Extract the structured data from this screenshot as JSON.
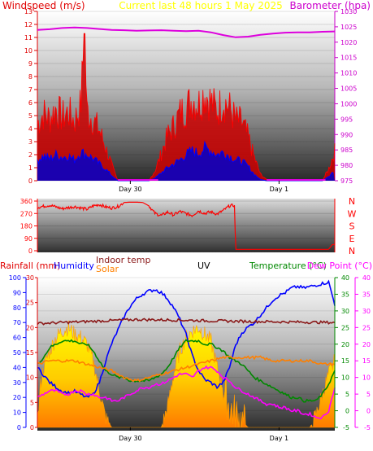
{
  "colors": {
    "wind_label": "#e00000",
    "baro_label": "#cc00cc",
    "header_title": "#ffff00",
    "wind": "#ff0000",
    "gust_fill": "#cc0000",
    "wind_avg": "#0000ff",
    "barometer": "#dd00dd",
    "direction": "#ff0000",
    "rain_label": "#e00000",
    "humidity": "#0000ff",
    "indoor_temp": "#8b1a1a",
    "solar": "#ff8000",
    "uv": "#000000",
    "temperature": "#008800",
    "dew_point": "#ff00ff"
  },
  "header": {
    "windspeed_label": "Windspeed (m/s)",
    "title": "Current last 48 hours 1 May 2025",
    "barometer_label": "Barometer (hpa)"
  },
  "bottom_header": {
    "rainfall": "Rainfall (mm)",
    "humidity": "Humidity",
    "indoor_temp": "Indoor temp",
    "solar": "Solar",
    "uv": "UV",
    "temperature": "Temperature (°C)",
    "dew_point": "Dew Point (°C)"
  },
  "chart_data": [
    {
      "type": "line",
      "title": "Current last 48 hours 1 May 2025",
      "x_range_hours": [
        0,
        48
      ],
      "xtick_labels": [
        "Day 30",
        "Day 1"
      ],
      "xtick_hours": [
        15,
        39
      ],
      "y_left": {
        "label": "Windspeed (m/s)",
        "range": [
          0,
          13
        ],
        "ticks": [
          0,
          1,
          2,
          3,
          4,
          5,
          6,
          7,
          8,
          9,
          10,
          11,
          12,
          13
        ]
      },
      "y_right": {
        "label": "Barometer (hpa)",
        "range": [
          975,
          1030
        ],
        "ticks": [
          975,
          980,
          985,
          990,
          995,
          1000,
          1005,
          1010,
          1015,
          1020,
          1025,
          1030
        ]
      },
      "series": [
        {
          "name": "Gust",
          "axis": "left",
          "x": [
            0,
            1,
            2,
            3,
            4,
            5,
            6,
            7,
            7.6,
            8,
            9,
            10,
            11,
            12,
            13,
            14,
            15,
            16,
            17,
            18,
            19,
            20,
            21,
            22,
            23,
            24,
            25,
            26,
            27,
            28,
            29,
            30,
            31,
            32,
            33,
            34,
            35,
            36,
            37,
            38,
            39,
            40,
            41,
            42,
            43,
            44,
            45,
            46,
            47,
            48
          ],
          "values": [
            4.4,
            5.2,
            4.8,
            5.6,
            4.9,
            5.3,
            4.6,
            5.8,
            11.3,
            5.4,
            4.7,
            3.9,
            2.6,
            1.2,
            0,
            0,
            0,
            0,
            0,
            0,
            0.8,
            2.1,
            3.5,
            4.2,
            5.2,
            5.6,
            6.3,
            5.9,
            6.8,
            6.1,
            5.4,
            6.2,
            5.6,
            4.7,
            4.5,
            3.4,
            1.8,
            0.5,
            0.1,
            0,
            0,
            0,
            0,
            0,
            0,
            0,
            0,
            0,
            0.9,
            2.3
          ]
        },
        {
          "name": "Average",
          "axis": "left",
          "x": [
            0,
            1,
            2,
            3,
            4,
            5,
            6,
            7,
            8,
            9,
            10,
            11,
            12,
            13,
            14,
            15,
            16,
            17,
            18,
            19,
            20,
            21,
            22,
            23,
            24,
            25,
            26,
            27,
            28,
            29,
            30,
            31,
            32,
            33,
            34,
            35,
            36,
            37,
            38,
            39,
            40,
            41,
            42,
            43,
            44,
            45,
            46,
            47,
            48
          ],
          "values": [
            1.6,
            1.9,
            1.7,
            2.0,
            1.8,
            1.9,
            1.6,
            2.2,
            2.0,
            1.7,
            1.3,
            0.9,
            0.4,
            0,
            0,
            0,
            0,
            0,
            0,
            0.2,
            0.6,
            1.0,
            1.3,
            1.6,
            2.0,
            2.3,
            2.1,
            2.5,
            2.3,
            2.0,
            2.2,
            1.9,
            1.6,
            1.5,
            1.1,
            0.5,
            0.1,
            0,
            0,
            0,
            0,
            0,
            0,
            0,
            0,
            0,
            0,
            0.3,
            0.8
          ]
        },
        {
          "name": "Barometer",
          "axis": "right",
          "x": [
            0,
            2,
            4,
            6,
            8,
            10,
            12,
            14,
            16,
            18,
            20,
            22,
            24,
            26,
            28,
            30,
            32,
            34,
            36,
            38,
            40,
            42,
            44,
            46,
            48
          ],
          "values": [
            1024.0,
            1024.2,
            1024.6,
            1024.8,
            1024.6,
            1024.3,
            1024.0,
            1023.9,
            1023.7,
            1023.8,
            1023.9,
            1023.7,
            1023.6,
            1023.7,
            1023.2,
            1022.3,
            1021.6,
            1021.8,
            1022.4,
            1022.8,
            1023.1,
            1023.2,
            1023.2,
            1023.4,
            1023.5
          ]
        }
      ]
    },
    {
      "type": "line",
      "x_range_hours": [
        0,
        48
      ],
      "y_left": {
        "range": [
          0,
          360
        ],
        "ticks": [
          0,
          90,
          180,
          270,
          360
        ]
      },
      "y_right_labels": [
        "N",
        "W",
        "S",
        "E",
        "N"
      ],
      "series": [
        {
          "name": "Wind direction",
          "x": [
            0,
            2,
            4,
            6,
            8,
            9,
            10,
            11,
            12,
            13,
            14,
            15,
            16,
            17,
            18,
            19,
            20,
            21,
            22,
            23,
            24,
            25,
            26,
            27,
            28,
            29,
            30,
            31,
            31.8,
            32,
            33,
            34,
            35,
            36,
            37,
            38,
            39,
            40,
            41,
            42,
            43,
            44,
            45,
            46,
            47,
            47.6,
            48
          ],
          "values": [
            315,
            330,
            305,
            320,
            300,
            325,
            335,
            318,
            310,
            320,
            350,
            352,
            352,
            350,
            325,
            270,
            255,
            280,
            260,
            285,
            270,
            255,
            290,
            270,
            282,
            265,
            292,
            325,
            330,
            10,
            10,
            10,
            10,
            10,
            10,
            10,
            10,
            10,
            10,
            10,
            10,
            10,
            10,
            10,
            10,
            45,
            45
          ]
        }
      ]
    },
    {
      "type": "line",
      "x_range_hours": [
        0,
        48
      ],
      "xtick_labels": [
        "Day 30",
        "Day 1"
      ],
      "xtick_hours": [
        15,
        39
      ],
      "y_rain": {
        "label": "Rainfall (mm)",
        "range": [
          0,
          30
        ],
        "ticks": [
          0,
          5,
          10,
          15,
          20,
          25,
          30
        ]
      },
      "y_humidity": {
        "label": "Humidity",
        "range": [
          0,
          100
        ],
        "ticks": [
          0,
          10,
          20,
          30,
          40,
          50,
          60,
          70,
          80,
          90,
          100
        ]
      },
      "y_temp_left": {
        "range": [
          -5,
          40
        ],
        "ticks": [
          -5,
          0,
          5,
          10,
          15,
          20,
          25,
          30,
          35,
          40
        ]
      },
      "y_temp_right": {
        "label": "Dew Point (°C)",
        "range": [
          -5,
          40
        ],
        "ticks": [
          -5,
          0,
          5,
          10,
          15,
          20,
          25,
          30,
          35,
          40
        ]
      },
      "series": [
        {
          "name": "Solar",
          "axis": "temp",
          "x": [
            0,
            0.5,
            1,
            2,
            3,
            4,
            5,
            6,
            7,
            8,
            9,
            10,
            11,
            12,
            13,
            14,
            20,
            21,
            22,
            23,
            24,
            25,
            26,
            27,
            28,
            29,
            30,
            31,
            32,
            33,
            34,
            38,
            44,
            45,
            46,
            47,
            48
          ],
          "values": [
            -5,
            8,
            13,
            18,
            22,
            24,
            25,
            23,
            22,
            20,
            15,
            6,
            -2,
            -5,
            -5,
            -5,
            -5,
            1,
            11,
            18,
            22,
            24,
            25,
            23,
            21,
            13,
            7,
            1,
            -1,
            -3,
            -5,
            -5,
            -5,
            -1,
            5,
            11,
            15
          ]
        },
        {
          "name": "Humidity",
          "axis": "humidity",
          "x": [
            0,
            1,
            2,
            3,
            4,
            5,
            6,
            7,
            8,
            9,
            10,
            11,
            12,
            13,
            14,
            15,
            16,
            17,
            18,
            19,
            20,
            21,
            22,
            23,
            24,
            25,
            26,
            27,
            28,
            29,
            30,
            31,
            32,
            33,
            34,
            35,
            36,
            37,
            38,
            39,
            40,
            41,
            42,
            43,
            44,
            45,
            46,
            47,
            48
          ],
          "values": [
            40,
            35,
            30,
            27,
            24,
            23,
            24,
            22,
            20,
            22,
            30,
            44,
            56,
            65,
            74,
            81,
            86,
            89,
            91,
            92,
            90,
            86,
            80,
            72,
            62,
            48,
            38,
            32,
            30,
            27,
            30,
            40,
            55,
            63,
            67,
            70,
            75,
            80,
            85,
            88,
            90,
            93,
            94,
            93,
            94,
            95,
            96,
            97,
            82
          ]
        },
        {
          "name": "Indoor temp",
          "axis": "temp",
          "x": [
            0,
            4,
            8,
            12,
            16,
            20,
            24,
            28,
            32,
            36,
            40,
            44,
            48
          ],
          "values": [
            26.2,
            26.5,
            26.8,
            27.1,
            27.4,
            27.3,
            27.2,
            27.0,
            26.9,
            26.8,
            26.7,
            26.6,
            26.5
          ]
        },
        {
          "name": "Temperature",
          "axis": "temp",
          "x": [
            0,
            1,
            2,
            3,
            4,
            5,
            6,
            7,
            8,
            9,
            10,
            11,
            12,
            13,
            14,
            15,
            16,
            17,
            18,
            19,
            20,
            21,
            22,
            23,
            24,
            25,
            26,
            27,
            28,
            29,
            30,
            31,
            32,
            33,
            34,
            35,
            36,
            37,
            38,
            39,
            40,
            41,
            42,
            43,
            44,
            45,
            46,
            47,
            48
          ],
          "values": [
            14,
            16,
            19,
            20,
            21,
            21,
            21,
            20,
            20,
            18,
            15,
            12,
            11,
            10,
            10,
            9,
            9,
            9,
            9,
            10,
            11,
            13,
            16,
            19,
            21,
            21,
            21,
            20,
            20,
            19,
            18,
            16,
            15,
            14,
            12,
            10,
            9,
            8,
            7,
            6,
            5,
            4,
            4,
            3,
            3,
            3,
            5,
            8,
            12
          ]
        },
        {
          "name": "Solar",
          "axis": "temp",
          "x": [
            0,
            2,
            4,
            6,
            8,
            10,
            12,
            14,
            16,
            18,
            20,
            22,
            24,
            26,
            28,
            30,
            32,
            34,
            36,
            38,
            40,
            42,
            44,
            46,
            48
          ],
          "values": [
            14,
            15,
            15,
            15,
            14,
            13,
            12,
            10,
            9,
            10,
            11,
            12,
            13,
            14,
            15,
            16,
            16,
            16,
            16,
            15,
            15,
            15,
            15,
            14,
            14
          ]
        },
        {
          "name": "Dew Point",
          "axis": "temp",
          "x": [
            0,
            1,
            2,
            3,
            4,
            5,
            6,
            7,
            8,
            9,
            10,
            11,
            12,
            13,
            14,
            15,
            16,
            17,
            18,
            19,
            20,
            21,
            22,
            23,
            24,
            25,
            26,
            27,
            28,
            29,
            30,
            31,
            32,
            33,
            34,
            35,
            36,
            37,
            38,
            39,
            40,
            41,
            42,
            43,
            44,
            45,
            46,
            47,
            48
          ],
          "values": [
            4,
            5,
            6,
            6,
            5,
            5,
            6,
            6,
            5,
            5,
            4,
            4,
            3,
            3,
            4,
            5,
            6,
            7,
            7,
            8,
            8,
            9,
            10,
            11,
            11,
            10,
            12,
            13,
            13,
            12,
            10,
            9,
            7,
            6,
            5,
            4,
            3,
            2,
            2,
            1,
            1,
            0,
            0,
            -1,
            -1,
            -2,
            -2,
            0,
            7
          ]
        }
      ]
    }
  ]
}
